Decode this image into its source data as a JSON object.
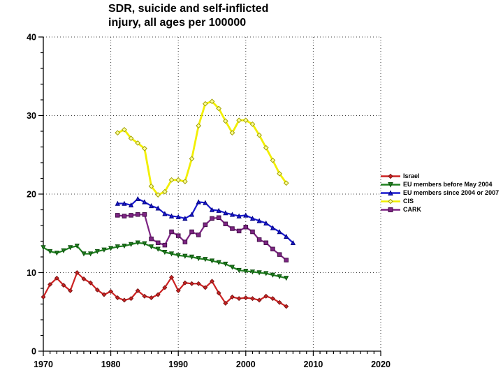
{
  "title": {
    "line1": "SDR, suicide and self-inflicted",
    "line2": "injury, all ages per 100000"
  },
  "chart_data": {
    "type": "line",
    "title": "SDR, suicide and self-inflicted injury, all ages per 100000",
    "xlabel": "",
    "ylabel": "",
    "xlim": [
      1970,
      2020
    ],
    "ylim": [
      0,
      40
    ],
    "x_major_ticks": [
      1970,
      1980,
      1990,
      2000,
      2010,
      2020
    ],
    "x_minor_step": 1,
    "y_major_ticks": [
      0,
      10,
      20,
      30,
      40
    ],
    "y_minor_step": 2,
    "grid_x": [
      1980,
      1990,
      2000,
      2010,
      2020
    ],
    "grid_y": [
      10,
      20,
      30,
      40
    ],
    "grid_on": true,
    "legend_position": "right",
    "axis_color": "#000000",
    "grid_color": "#3c3c3c",
    "series": [
      {
        "name": "Israel",
        "color": "#cc2222",
        "marker": "diamond",
        "marker_fill": "#cc2222",
        "marker_stroke": "#7a1515",
        "marker_size": 2.8,
        "line_width": 2.2,
        "start_year": 1970,
        "values": [
          6.9,
          8.5,
          9.3,
          8.4,
          7.7,
          10.0,
          9.2,
          8.7,
          7.8,
          7.2,
          7.6,
          6.8,
          6.5,
          6.7,
          7.7,
          7.0,
          6.8,
          7.2,
          8.1,
          9.4,
          7.7,
          8.7,
          8.6,
          8.6,
          8.1,
          8.9,
          7.4,
          6.1,
          6.9,
          6.7,
          6.8,
          6.7,
          6.5,
          7.0,
          6.7,
          6.2,
          5.7
        ]
      },
      {
        "name": "EU members before May 2004",
        "color": "#208020",
        "marker": "triangle-down",
        "marker_fill": "#208020",
        "marker_stroke": "#0a4f0a",
        "marker_size": 2.8,
        "line_width": 2.2,
        "start_year": 1970,
        "values": [
          13.2,
          12.7,
          12.5,
          12.8,
          13.2,
          13.4,
          12.4,
          12.4,
          12.7,
          12.9,
          13.1,
          13.3,
          13.4,
          13.6,
          13.8,
          13.7,
          13.3,
          13.0,
          12.6,
          12.4,
          12.2,
          12.1,
          12.0,
          11.8,
          11.7,
          11.5,
          11.3,
          11.1,
          10.7,
          10.3,
          10.2,
          10.1,
          10.0,
          9.9,
          9.7,
          9.5,
          9.3
        ]
      },
      {
        "name": "EU members since 2004 or 2007",
        "color": "#1a1acd",
        "marker": "triangle-up",
        "marker_fill": "#1a1acd",
        "marker_stroke": "#000080",
        "marker_size": 2.8,
        "line_width": 2.2,
        "start_year": 1981,
        "values": [
          18.8,
          18.8,
          18.6,
          19.4,
          19.0,
          18.5,
          18.2,
          17.5,
          17.2,
          17.1,
          16.9,
          17.4,
          19.0,
          18.9,
          18.0,
          17.9,
          17.6,
          17.4,
          17.2,
          17.3,
          16.9,
          16.6,
          16.3,
          15.7,
          15.2,
          14.6,
          13.8
        ]
      },
      {
        "name": "CIS",
        "color": "#f2ef00",
        "marker": "diamond-open",
        "marker_fill": "#ffff99",
        "marker_stroke": "#a0a000",
        "marker_size": 3.2,
        "line_width": 2.8,
        "start_year": 1981,
        "values": [
          27.8,
          28.2,
          27.1,
          26.5,
          25.8,
          21.0,
          19.9,
          20.3,
          21.8,
          21.8,
          21.6,
          24.5,
          28.7,
          31.5,
          31.8,
          30.9,
          29.3,
          27.8,
          29.4,
          29.4,
          28.9,
          27.5,
          25.9,
          24.3,
          22.6,
          21.4
        ]
      },
      {
        "name": "CARK",
        "color": "#7d2483",
        "marker": "square",
        "marker_fill": "#7d2483",
        "marker_stroke": "#45104a",
        "marker_size": 2.8,
        "line_width": 2.2,
        "start_year": 1981,
        "values": [
          17.3,
          17.2,
          17.3,
          17.4,
          17.4,
          14.3,
          13.8,
          13.5,
          15.2,
          14.7,
          13.9,
          15.2,
          14.8,
          16.1,
          16.9,
          17.0,
          16.2,
          15.6,
          15.3,
          15.8,
          15.2,
          14.2,
          13.8,
          13.0,
          12.3,
          11.6
        ]
      }
    ]
  }
}
